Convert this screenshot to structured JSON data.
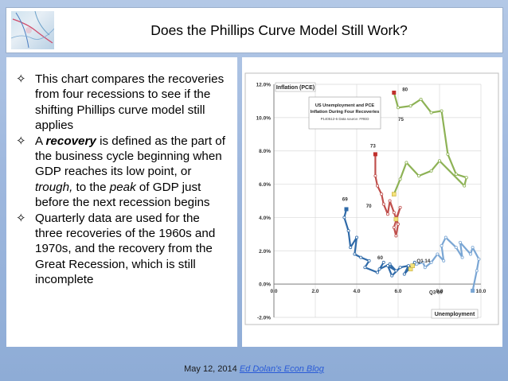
{
  "header": {
    "title": "Does the Phillips Curve Model Still Work?"
  },
  "bullets": [
    {
      "parts": [
        {
          "text": "This chart compares the recoveries from four recessions to see if the shifting Phillips curve model still applies",
          "style": "normal"
        }
      ]
    },
    {
      "parts": [
        {
          "text": "A ",
          "style": "normal"
        },
        {
          "text": "recovery",
          "style": "bolditalic"
        },
        {
          "text": " is defined as the part of the business cycle beginning when GDP reaches its low point, or ",
          "style": "normal"
        },
        {
          "text": "trough,",
          "style": "italic"
        },
        {
          "text": " to the ",
          "style": "normal"
        },
        {
          "text": "peak",
          "style": "italic"
        },
        {
          "text": " of GDP just before the next recession begins",
          "style": "normal"
        }
      ]
    },
    {
      "parts": [
        {
          "text": "Quarterly data are used for the three recoveries of the 1960s and 1970s, and the recovery from the Great Recession, which is still incomplete",
          "style": "normal"
        }
      ]
    }
  ],
  "bullet_icon": "four-point-star-outline",
  "footer": {
    "date": "May 12, 2014",
    "link": "Ed Dolan's Econ Blog"
  },
  "colors": {
    "background": "#a7bfe2",
    "link": "#2a5bd7",
    "series_60s": "#2f6aa8",
    "series_70": "#c0504d",
    "series_75": "#8db255",
    "series_recent": "#7aa6d4"
  },
  "chart_data": {
    "type": "line",
    "inner_title": "US Unemployment and PCE Inflation During Four Recoveries",
    "inner_subtitle": "P140512-6 Data source: FRED",
    "xlabel": "Unemployment",
    "ylabel": "Inflation (PCE)",
    "xlim": [
      0,
      10
    ],
    "ylim": [
      -2,
      12
    ],
    "xticks": [
      "0.0",
      "2.0",
      "4.0",
      "6.0",
      "8.0",
      "10.0"
    ],
    "yticks": [
      "-2.0%",
      "0.0%",
      "2.0%",
      "4.0%",
      "6.0%",
      "8.0%",
      "10.0%",
      "12.0%"
    ],
    "grid": true,
    "series": [
      {
        "label_start": "69",
        "label_mid": "60",
        "color": "#2f6aa8",
        "x": [
          3.5,
          3.4,
          3.6,
          3.7,
          4.0,
          3.9,
          4.2,
          4.6,
          4.4,
          5.0,
          5.3,
          5.1,
          5.6,
          5.9,
          5.5,
          5.7,
          6.1,
          6.5,
          6.3,
          6.8,
          6.6
        ],
        "y": [
          4.5,
          4.0,
          3.2,
          2.2,
          2.8,
          1.8,
          1.6,
          1.4,
          1.0,
          0.7,
          1.3,
          0.9,
          1.2,
          0.8,
          1.1,
          0.5,
          1.0,
          1.1,
          0.6,
          1.3,
          0.9
        ]
      },
      {
        "label_start": "73",
        "label_end": "70",
        "color": "#c0504d",
        "x": [
          4.9,
          4.9,
          5.0,
          5.2,
          5.3,
          5.5,
          5.6,
          5.8,
          6.0,
          5.9,
          5.8,
          6.1,
          5.9
        ],
        "y": [
          7.8,
          6.5,
          5.9,
          5.4,
          4.8,
          4.2,
          5.0,
          4.3,
          3.6,
          2.9,
          3.4,
          4.6,
          3.9
        ]
      },
      {
        "label_start": "80",
        "label_end": "75",
        "color": "#8db255",
        "x": [
          5.8,
          6.0,
          6.6,
          7.1,
          7.6,
          8.1,
          8.4,
          8.8,
          9.3,
          9.2,
          8.0,
          7.6,
          7.0,
          6.4,
          6.1,
          5.8
        ],
        "y": [
          11.5,
          10.6,
          10.7,
          11.1,
          10.3,
          10.4,
          7.8,
          6.6,
          6.4,
          5.9,
          7.4,
          6.8,
          6.5,
          7.3,
          6.3,
          5.4
        ]
      },
      {
        "label_start": "Q3 09",
        "label_end": "Q1 14",
        "color": "#7aa6d4",
        "x": [
          9.6,
          9.8,
          9.9,
          9.6,
          9.5,
          9.0,
          9.1,
          8.8,
          8.3,
          8.1,
          8.2,
          7.9,
          7.6,
          7.3,
          7.2,
          6.9,
          6.7
        ],
        "y": [
          -0.4,
          0.8,
          1.5,
          2.2,
          1.8,
          2.5,
          1.6,
          2.2,
          2.8,
          2.3,
          1.4,
          1.8,
          1.3,
          1.0,
          1.3,
          1.2,
          1.1
        ]
      }
    ]
  }
}
